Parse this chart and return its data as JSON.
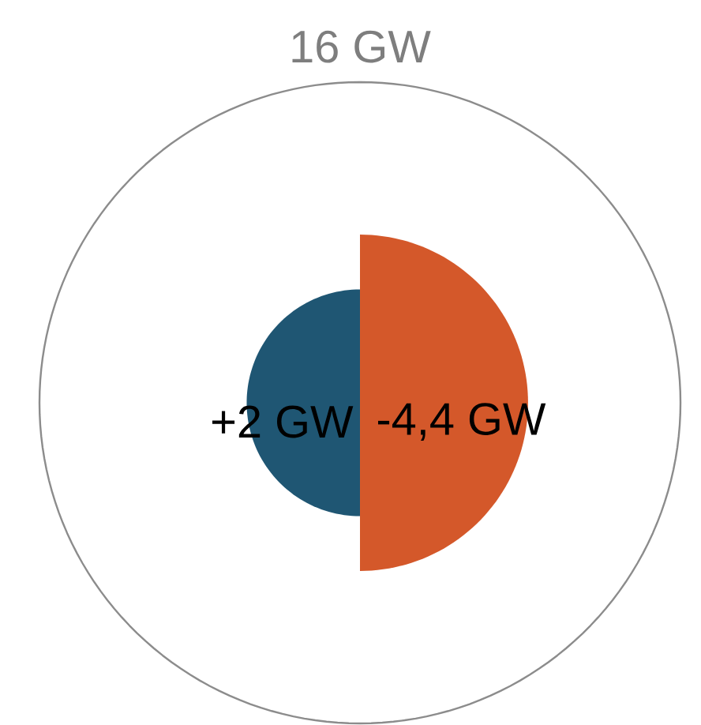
{
  "chart_data": {
    "type": "other",
    "values": [
      16,
      2,
      -4.4
    ],
    "value_labels": [
      "16 GW",
      "+2 GW",
      "-4,4 GW"
    ],
    "colors": [
      "#8c8c8c",
      "#1f5673",
      "#d4582a"
    ]
  }
}
